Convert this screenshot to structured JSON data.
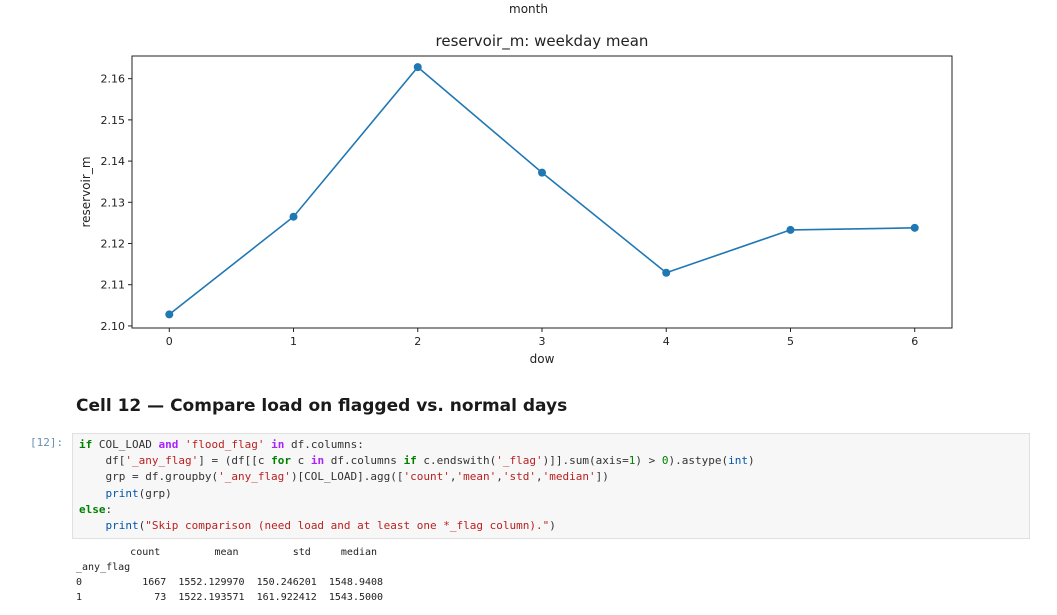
{
  "previous_plot": {
    "title_fragment": "month"
  },
  "chart_data": {
    "type": "line",
    "title": "reservoir_m: weekday mean",
    "xlabel": "dow",
    "ylabel": "reservoir_m",
    "x": [
      0,
      1,
      2,
      3,
      4,
      5,
      6
    ],
    "series": [
      {
        "values": [
          2.1028,
          2.1265,
          2.1628,
          2.1372,
          2.1129,
          2.1233,
          2.1238
        ]
      }
    ],
    "xlim": [
      -0.3,
      6.3
    ],
    "ylim": [
      2.0995,
      2.1655
    ],
    "xticks": [
      "0",
      "1",
      "2",
      "3",
      "4",
      "5",
      "6"
    ],
    "yticks": [
      "2.10",
      "2.11",
      "2.12",
      "2.13",
      "2.14",
      "2.15",
      "2.16"
    ],
    "color": "#1f77b4",
    "grid": false
  },
  "cell": {
    "heading": "Cell 12 — Compare load on flagged vs. normal days",
    "prompt": "[12]:"
  },
  "output": {
    "lines": [
      "         count         mean         std     median",
      "_any_flag",
      "0          1667  1552.129970  150.246201  1548.9408",
      "1            73  1522.193571  161.922412  1543.5000"
    ]
  }
}
